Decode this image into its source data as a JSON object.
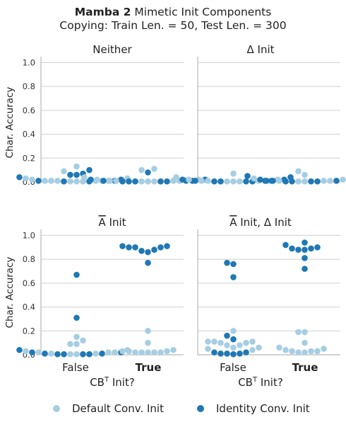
{
  "title": {
    "bold": "Mamba 2",
    "rest": " Mimetic Init Components",
    "line2": "Copying: Train Len. = 50, Test Len. = 300"
  },
  "colors": {
    "default": "#a6cee3",
    "identity": "#1f78b4"
  },
  "legend": {
    "default_label": "Default Conv. Init",
    "identity_label": "Identity Conv. Init"
  },
  "axes": {
    "ylabel": "Char. Accuracy",
    "xlabel_main": "CB",
    "xlabel_sup": "T",
    "xlabel_end": " Init?",
    "yticks": [
      "0.0",
      "0.2",
      "0.4",
      "0.6",
      "0.8",
      "1.0"
    ],
    "xticks": [
      "False",
      "True"
    ]
  },
  "chart_data": [
    {
      "type": "scatter",
      "title_prefix": "",
      "title_bar": "",
      "title": "Neither",
      "categories": [
        "False",
        "True"
      ],
      "ylim": [
        0,
        1.05
      ],
      "series": [
        {
          "name": "Default Conv. Init",
          "values": {
            "False": [
              0.01,
              0.01,
              0.005,
              0.005,
              0.01,
              0.005,
              0.01,
              0.03,
              0.13,
              0.09,
              0.01,
              0.01,
              0.02,
              0.03
            ],
            "True": [
              0.04,
              0.02,
              0.01,
              0.005,
              0.005,
              0.1,
              0.11,
              0.01,
              0.01,
              0.005,
              0.01,
              0.02
            ]
          }
        },
        {
          "name": "Identity Conv. Init",
          "values": {
            "False": [
              0.04,
              0.02,
              0.01,
              0.005,
              0.005,
              0.06,
              0.1,
              0.07,
              0.06,
              0.01
            ],
            "True": [
              0.02,
              0.01,
              0.005,
              0.005,
              0.005,
              0.08,
              0.005,
              0.005,
              0.01,
              0.01,
              0.02
            ]
          }
        }
      ]
    },
    {
      "type": "scatter",
      "title_prefix": "",
      "title_bar": "",
      "title": "Δ Init",
      "categories": [
        "False",
        "True"
      ],
      "ylim": [
        0,
        1.05
      ],
      "series": [
        {
          "name": "Default Conv. Init",
          "values": {
            "False": [
              0.04,
              0.02,
              0.01,
              0.005,
              0.005,
              0.07,
              0.01,
              0.005,
              0.01,
              0.02
            ],
            "True": [
              0.02,
              0.01,
              0.01,
              0.005,
              0.09,
              0.06,
              0.01,
              0.005,
              0.03,
              0.04
            ]
          }
        },
        {
          "name": "Identity Conv. Init",
          "values": {
            "False": [
              0.04,
              0.02,
              0.01,
              0.005,
              0.005,
              0.01,
              0.005,
              0.005,
              0.01,
              0.02
            ],
            "True": [
              0.02,
              0.01,
              0.005,
              0.005,
              0.05,
              0.01,
              0.005,
              0.005,
              0.01,
              0.02
            ]
          }
        }
      ]
    },
    {
      "type": "scatter",
      "title_prefix": "",
      "title_bar": "A",
      "title": " Init",
      "categories": [
        "False",
        "True"
      ],
      "ylim": [
        0,
        1.05
      ],
      "series": [
        {
          "name": "Default Conv. Init",
          "values": {
            "False": [
              0.02,
              0.01,
              0.01,
              0.005,
              0.005,
              0.09,
              0.15,
              0.12,
              0.09,
              0.02,
              0.02,
              0.03,
              0.04
            ],
            "True": [
              0.04,
              0.03,
              0.02,
              0.02,
              0.02,
              0.2,
              0.1,
              0.02,
              0.02,
              0.03,
              0.03
            ]
          }
        },
        {
          "name": "Identity Conv. Init",
          "values": {
            "False": [
              0.04,
              0.02,
              0.01,
              0.005,
              0.005,
              0.67,
              0.31,
              0.01,
              0.005,
              0.005,
              0.02
            ],
            "True": [
              0.91,
              0.9,
              0.87,
              0.9,
              0.86,
              0.77,
              0.88,
              0.9,
              0.91
            ]
          }
        }
      ]
    },
    {
      "type": "scatter",
      "title_prefix": "",
      "title_bar": "A",
      "title": " Init, Δ Init",
      "categories": [
        "False",
        "True"
      ],
      "ylim": [
        0,
        1.05
      ],
      "series": [
        {
          "name": "Default Conv. Init",
          "values": {
            "False": [
              0.11,
              0.1,
              0.08,
              0.06,
              0.05,
              0.2,
              0.11,
              0.06,
              0.08,
              0.1,
              0.11,
              0.04
            ],
            "True": [
              0.05,
              0.03,
              0.02,
              0.02,
              0.19,
              0.19,
              0.1,
              0.06,
              0.03,
              0.03,
              0.04
            ]
          }
        },
        {
          "name": "Identity Conv. Init",
          "values": {
            "False": [
              0.02,
              0.01,
              0.01,
              0.005,
              0.77,
              0.76,
              0.65,
              0.16,
              0.13,
              0.01,
              0.02
            ],
            "True": [
              0.92,
              0.9,
              0.88,
              0.94,
              0.88,
              0.81,
              0.72,
              0.89,
              0.89
            ]
          }
        }
      ]
    }
  ]
}
